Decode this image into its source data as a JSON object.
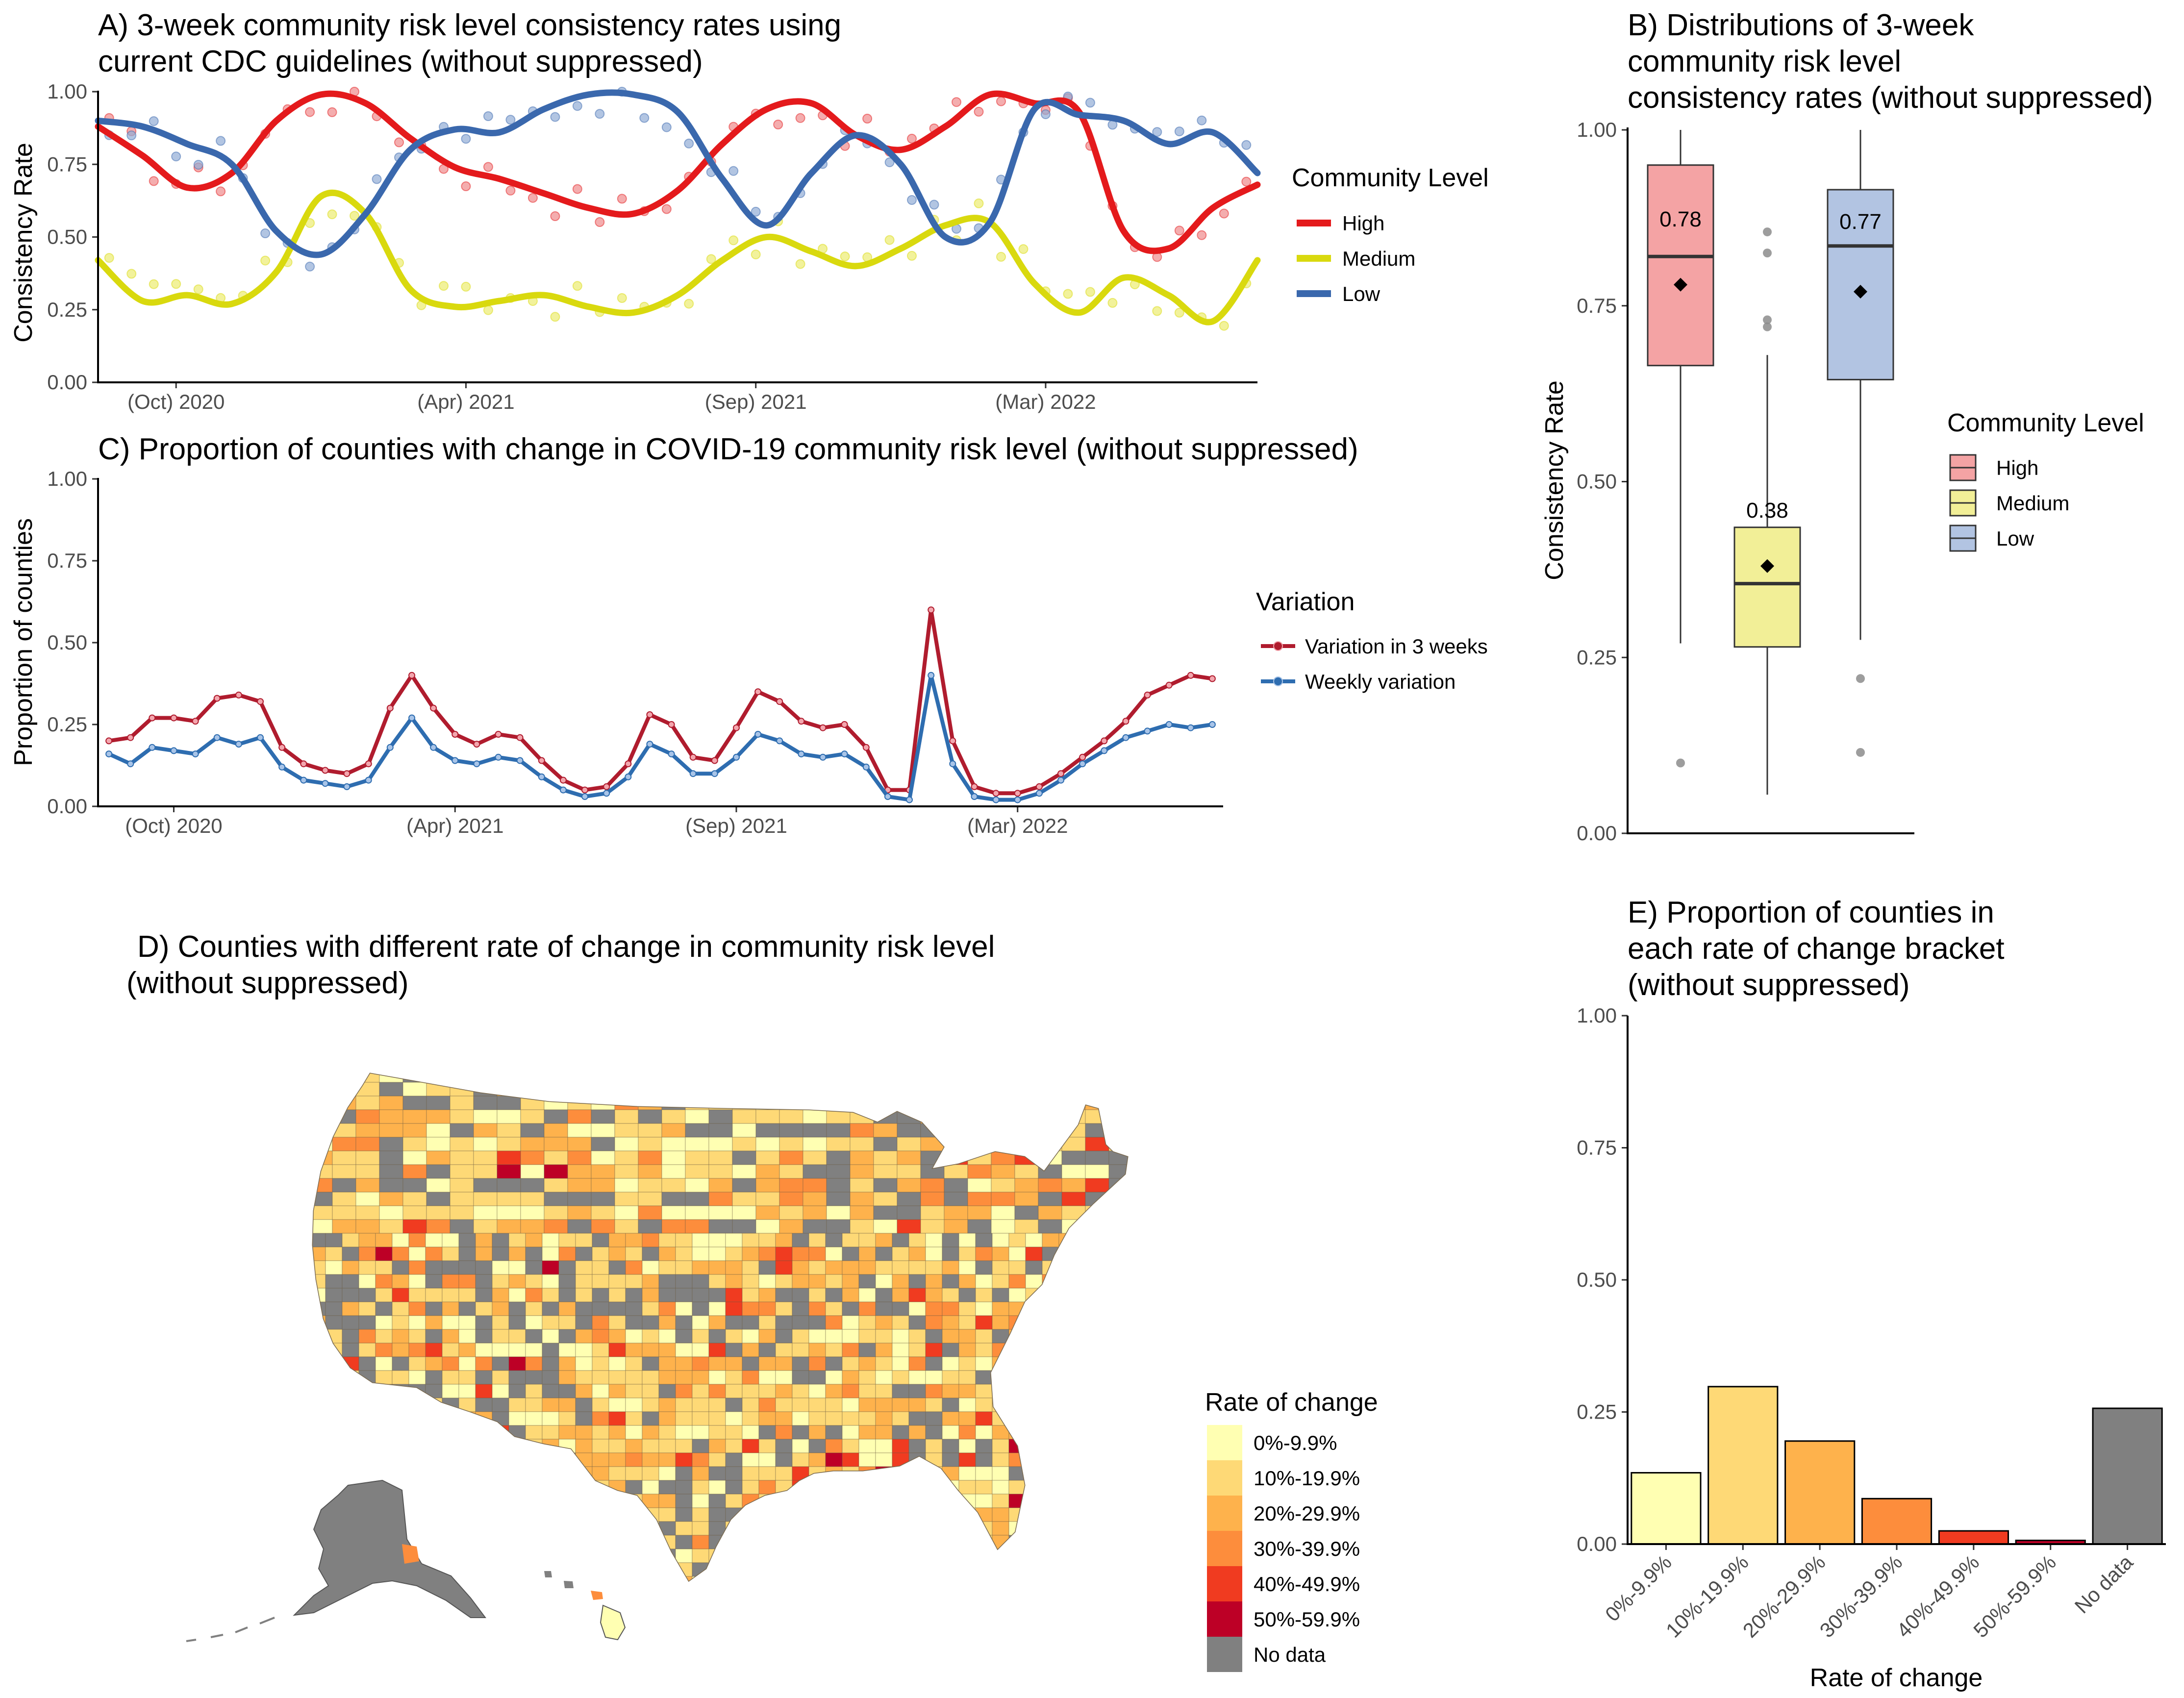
{
  "panelA": {
    "title_line1": "A) 3-week community risk level consistency rates using",
    "title_line2": "current CDC guidelines (without suppressed)",
    "ylabel": "Consistency Rate",
    "yticks": [
      "0.00",
      "0.25",
      "0.50",
      "0.75",
      "1.00"
    ],
    "xticks": [
      "(Oct) 2020",
      "(Apr) 2021",
      "(Sep) 2021",
      "(Mar) 2022"
    ],
    "legend_title": "Community Level",
    "legend_items": [
      "High",
      "Medium",
      "Low"
    ]
  },
  "panelB": {
    "title_line1": "B) Distributions of 3-week",
    "title_line2": "community risk level",
    "title_line3": "consistency rates (without suppressed)",
    "ylabel": "Consistency Rate",
    "yticks": [
      "0.00",
      "0.25",
      "0.50",
      "0.75",
      "1.00"
    ],
    "legend_title": "Community Level",
    "legend_items": [
      "High",
      "Medium",
      "Low"
    ]
  },
  "panelC": {
    "title": "C) Proportion of counties with change in COVID-19 community risk level (without suppressed)",
    "ylabel": "Proportion of counties",
    "yticks": [
      "0.00",
      "0.25",
      "0.50",
      "0.75",
      "1.00"
    ],
    "xticks": [
      "(Oct) 2020",
      "(Apr) 2021",
      "(Sep) 2021",
      "(Mar) 2022"
    ],
    "legend_title": "Variation",
    "legend_items": [
      "Variation in 3 weeks",
      "Weekly variation"
    ]
  },
  "panelD": {
    "title_line1": "D) Counties with different rate of change in community risk level",
    "title_line2": "(without suppressed)",
    "legend_title": "Rate of change",
    "legend_items": [
      "0%-9.9%",
      "10%-19.9%",
      "20%-29.9%",
      "30%-39.9%",
      "40%-49.9%",
      "50%-59.9%",
      "No data"
    ]
  },
  "panelE": {
    "title_line1": "E) Proportion of counties in",
    "title_line2": " each rate of change bracket",
    "title_line3": "(without suppressed)",
    "xlabel": "Rate of change",
    "yticks": [
      "0.00",
      "0.25",
      "0.50",
      "0.75",
      "1.00"
    ]
  },
  "colors": {
    "high": "#e41a1c",
    "medium": "#d9d90e",
    "low": "#3a68ad",
    "high_box": "#f4a3a4",
    "medium_box": "#f2ef97",
    "low_box": "#b2c4e2",
    "var3w": "#b01c2e",
    "weekly": "#2e6db0",
    "brackets": [
      "#ffffb2",
      "#fed976",
      "#feb24c",
      "#fd8d3c",
      "#f03b20",
      "#bd0026",
      "#808080"
    ]
  },
  "chart_data": [
    {
      "type": "line",
      "title": "A) 3-week community risk level consistency rates using current CDC guidelines (without suppressed)",
      "ylabel": "Consistency Rate",
      "x_unit": "weeks",
      "xlim": [
        0,
        104
      ],
      "ylim": [
        0,
        1
      ],
      "xticks": [
        {
          "x": 7,
          "label": "(Oct) 2020"
        },
        {
          "x": 33,
          "label": "(Apr) 2021"
        },
        {
          "x": 59,
          "label": "(Sep) 2021"
        },
        {
          "x": 85,
          "label": "(Mar) 2022"
        }
      ],
      "legend": "right",
      "x": [
        0,
        4,
        8,
        12,
        16,
        20,
        24,
        28,
        32,
        36,
        40,
        44,
        48,
        52,
        56,
        60,
        64,
        68,
        72,
        76,
        80,
        84,
        88,
        92,
        96,
        100,
        104
      ],
      "series": [
        {
          "name": "High",
          "values": [
            0.88,
            0.78,
            0.67,
            0.72,
            0.9,
            0.99,
            0.96,
            0.84,
            0.74,
            0.7,
            0.65,
            0.6,
            0.58,
            0.66,
            0.82,
            0.94,
            0.96,
            0.85,
            0.8,
            0.88,
            0.99,
            0.96,
            0.93,
            0.52,
            0.46,
            0.6,
            0.68
          ]
        },
        {
          "name": "Medium",
          "values": [
            0.42,
            0.28,
            0.3,
            0.27,
            0.38,
            0.64,
            0.58,
            0.32,
            0.26,
            0.28,
            0.3,
            0.26,
            0.24,
            0.3,
            0.42,
            0.5,
            0.45,
            0.4,
            0.46,
            0.54,
            0.55,
            0.34,
            0.24,
            0.36,
            0.3,
            0.21,
            0.42
          ]
        },
        {
          "name": "Low",
          "values": [
            0.9,
            0.88,
            0.82,
            0.75,
            0.52,
            0.44,
            0.58,
            0.8,
            0.87,
            0.86,
            0.94,
            0.99,
            0.99,
            0.93,
            0.7,
            0.54,
            0.72,
            0.85,
            0.75,
            0.5,
            0.55,
            0.94,
            0.92,
            0.9,
            0.82,
            0.86,
            0.72
          ]
        }
      ]
    },
    {
      "type": "box",
      "title": "B) Distributions of 3-week community risk level consistency rates (without suppressed)",
      "ylabel": "Consistency Rate",
      "ylim": [
        0,
        1
      ],
      "legend": "right",
      "series": [
        {
          "name": "High",
          "whisker_low": 0.27,
          "q1": 0.665,
          "median": 0.82,
          "q3": 0.95,
          "whisker_high": 1.0,
          "mean": 0.78,
          "mean_label": "0.78",
          "outliers": [
            0.1
          ]
        },
        {
          "name": "Medium",
          "whisker_low": 0.055,
          "q1": 0.265,
          "median": 0.355,
          "q3": 0.435,
          "whisker_high": 0.68,
          "mean": 0.38,
          "mean_label": "0.38",
          "outliers": [
            0.72,
            0.73,
            0.825,
            0.855
          ]
        },
        {
          "name": "Low",
          "whisker_low": 0.275,
          "q1": 0.645,
          "median": 0.835,
          "q3": 0.915,
          "whisker_high": 1.0,
          "mean": 0.77,
          "mean_label": "0.77",
          "outliers": [
            0.115,
            0.22
          ]
        }
      ]
    },
    {
      "type": "line",
      "title": "C) Proportion of counties with change in COVID-19 community risk level (without suppressed)",
      "ylabel": "Proportion of counties",
      "x_unit": "weeks",
      "xlim": [
        0,
        104
      ],
      "ylim": [
        0,
        1
      ],
      "xticks": [
        {
          "x": 7,
          "label": "(Oct) 2020"
        },
        {
          "x": 33,
          "label": "(Apr) 2021"
        },
        {
          "x": 59,
          "label": "(Sep) 2021"
        },
        {
          "x": 85,
          "label": "(Mar) 2022"
        }
      ],
      "legend": "right",
      "x": [
        1,
        3,
        5,
        7,
        9,
        11,
        13,
        15,
        17,
        19,
        21,
        23,
        25,
        27,
        29,
        31,
        33,
        35,
        37,
        39,
        41,
        43,
        45,
        47,
        49,
        51,
        53,
        55,
        57,
        59,
        61,
        63,
        65,
        67,
        69,
        71,
        73,
        75,
        77,
        79,
        81,
        83,
        85,
        87,
        89,
        91,
        93,
        95,
        97,
        99,
        101,
        103
      ],
      "series": [
        {
          "name": "Variation in 3 weeks",
          "values": [
            0.2,
            0.21,
            0.27,
            0.27,
            0.26,
            0.33,
            0.34,
            0.32,
            0.18,
            0.13,
            0.11,
            0.1,
            0.13,
            0.3,
            0.4,
            0.3,
            0.22,
            0.19,
            0.22,
            0.21,
            0.14,
            0.08,
            0.05,
            0.06,
            0.13,
            0.28,
            0.25,
            0.15,
            0.14,
            0.24,
            0.35,
            0.32,
            0.26,
            0.24,
            0.25,
            0.18,
            0.05,
            0.05,
            0.6,
            0.2,
            0.06,
            0.04,
            0.04,
            0.06,
            0.1,
            0.15,
            0.2,
            0.26,
            0.34,
            0.37,
            0.4,
            0.39
          ]
        },
        {
          "name": "Weekly variation",
          "values": [
            0.16,
            0.13,
            0.18,
            0.17,
            0.16,
            0.21,
            0.19,
            0.21,
            0.12,
            0.08,
            0.07,
            0.06,
            0.08,
            0.18,
            0.27,
            0.18,
            0.14,
            0.13,
            0.15,
            0.14,
            0.09,
            0.05,
            0.03,
            0.04,
            0.09,
            0.19,
            0.16,
            0.1,
            0.1,
            0.15,
            0.22,
            0.2,
            0.16,
            0.15,
            0.16,
            0.12,
            0.03,
            0.02,
            0.4,
            0.13,
            0.03,
            0.02,
            0.02,
            0.04,
            0.08,
            0.13,
            0.17,
            0.21,
            0.23,
            0.25,
            0.24,
            0.25
          ]
        }
      ]
    },
    {
      "type": "bar",
      "title": "E) Proportion of counties in each rate of change bracket (without suppressed)",
      "xlabel": "Rate of change",
      "ylim": [
        0,
        1
      ],
      "categories": [
        "0%-9.9%",
        "10%-19.9%",
        "20%-29.9%",
        "30%-39.9%",
        "40%-49.9%",
        "50%-59.9%",
        "No data"
      ],
      "values": [
        0.135,
        0.298,
        0.195,
        0.086,
        0.025,
        0.007,
        0.257
      ]
    }
  ]
}
